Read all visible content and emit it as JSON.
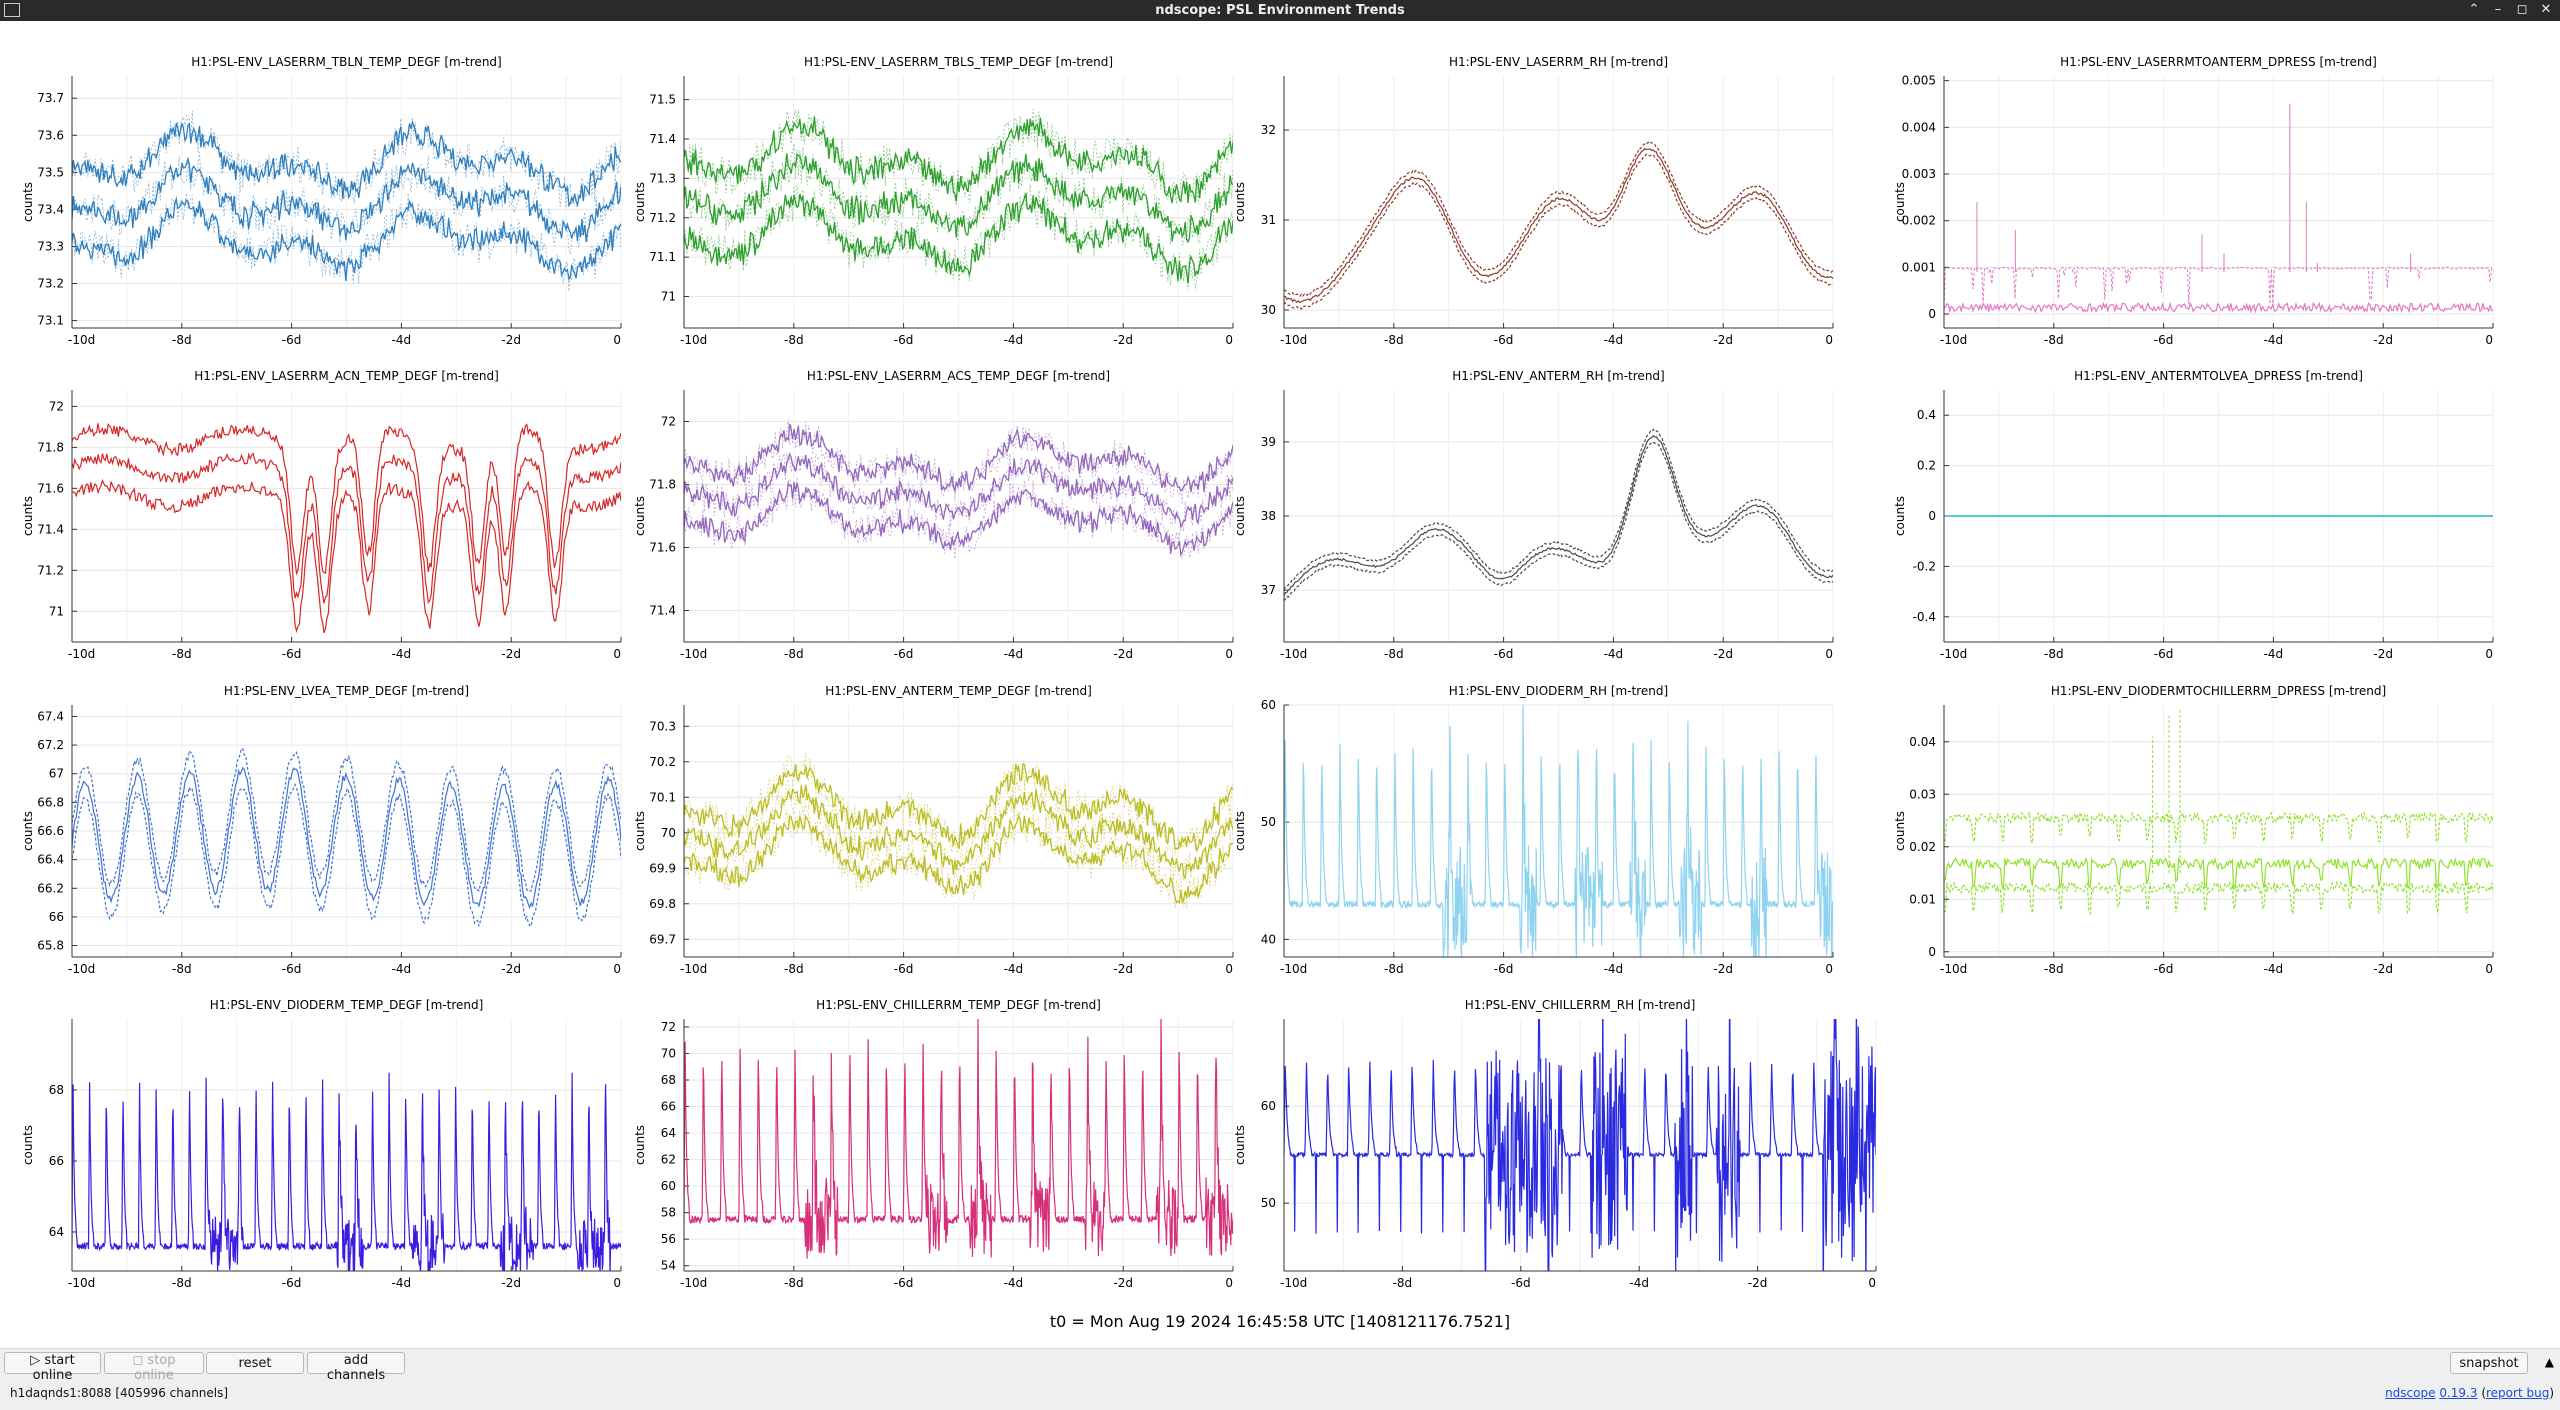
{
  "window": {
    "title": "ndscope: PSL Environment Trends"
  },
  "t0_label": "t0 = Mon Aug 19 2024 16:45:58 UTC [1408121176.7521]",
  "toolbar": {
    "start_online": "start online",
    "stop_online": "stop online",
    "reset": "reset",
    "add_channels": "add channels",
    "snapshot": "snapshot"
  },
  "status": {
    "server": "h1daqnds1:8088  [405996 channels]",
    "app_name": "ndscope",
    "version": "0.19.3",
    "report_bug": "report bug"
  },
  "colors": {
    "blue": "#2f7fbf",
    "green": "#2ca02c",
    "brown": "#8c3a2a",
    "pink": "#e377c2",
    "red": "#d62728",
    "purple": "#9467bd",
    "darkgray": "#4a4a4a",
    "teal": "#17becf",
    "cornflower": "#3f73d2",
    "olive": "#bcbd22",
    "skyblue": "#8fd3f0",
    "lime": "#8ee22a",
    "violet": "#3a1ee0",
    "magenta": "#d6307a",
    "royal": "#2a2ae0"
  },
  "chart_data": [
    {
      "type": "line",
      "title": "H1:PSL-ENV_LASERRM_TBLN_TEMP_DEGF [m-trend]",
      "ylabel": "counts",
      "color": "blue",
      "shape": "band",
      "ylim": [
        73.08,
        73.76
      ],
      "yticks": [
        "73.1",
        "73.2",
        "73.3",
        "73.4",
        "73.5",
        "73.6",
        "73.7"
      ],
      "xticks": [
        "-10d",
        "-8d",
        "-6d",
        "-4d",
        "-2d",
        "0"
      ],
      "xlim": [
        -10,
        0
      ],
      "center": 73.42,
      "spread": 0.16,
      "wave": 0.05
    },
    {
      "type": "line",
      "title": "H1:PSL-ENV_LASERRM_TBLS_TEMP_DEGF [m-trend]",
      "ylabel": "counts",
      "color": "green",
      "shape": "band",
      "ylim": [
        70.92,
        71.56
      ],
      "yticks": [
        "71",
        "71.1",
        "71.2",
        "71.3",
        "71.4",
        "71.5"
      ],
      "xticks": [
        "-10d",
        "-8d",
        "-6d",
        "-4d",
        "-2d",
        "0"
      ],
      "xlim": [
        -10,
        0
      ],
      "center": 71.25,
      "spread": 0.15,
      "wave": 0.05
    },
    {
      "type": "line",
      "title": "H1:PSL-ENV_LASERRM_RH [m-trend]",
      "ylabel": "counts",
      "color": "brown",
      "shape": "rh1",
      "ylim": [
        29.8,
        32.6
      ],
      "yticks": [
        "30",
        "31",
        "32"
      ],
      "xticks": [
        "-10d",
        "-8d",
        "-6d",
        "-4d",
        "-2d",
        "0"
      ],
      "xlim": [
        -10,
        0
      ]
    },
    {
      "type": "line",
      "title": "H1:PSL-ENV_LASERRMTOANTERM_DPRESS [m-trend]",
      "ylabel": "counts",
      "color": "pink",
      "shape": "dpress1",
      "ylim": [
        -0.0003,
        0.0051
      ],
      "yticks": [
        "0",
        "0.001",
        "0.002",
        "0.003",
        "0.004",
        "0.005"
      ],
      "xticks": [
        "-10d",
        "-8d",
        "-6d",
        "-4d",
        "-2d",
        "0"
      ],
      "xlim": [
        -10,
        0
      ]
    },
    {
      "type": "line",
      "title": "H1:PSL-ENV_LASERRM_ACN_TEMP_DEGF [m-trend]",
      "ylabel": "counts",
      "color": "red",
      "shape": "acn",
      "ylim": [
        70.85,
        72.08
      ],
      "yticks": [
        "71",
        "71.2",
        "71.4",
        "71.6",
        "71.8",
        "72"
      ],
      "xticks": [
        "-10d",
        "-8d",
        "-6d",
        "-4d",
        "-2d",
        "0"
      ],
      "xlim": [
        -10,
        0
      ]
    },
    {
      "type": "line",
      "title": "H1:PSL-ENV_LASERRM_ACS_TEMP_DEGF [m-trend]",
      "ylabel": "counts",
      "color": "purple",
      "shape": "band",
      "ylim": [
        71.3,
        72.1
      ],
      "yticks": [
        "71.4",
        "71.6",
        "71.8",
        "72"
      ],
      "xticks": [
        "-10d",
        "-8d",
        "-6d",
        "-4d",
        "-2d",
        "0"
      ],
      "xlim": [
        -10,
        0
      ],
      "center": 71.78,
      "spread": 0.14,
      "wave": 0.05
    },
    {
      "type": "line",
      "title": "H1:PSL-ENV_ANTERM_RH [m-trend]",
      "ylabel": "counts",
      "color": "darkgray",
      "shape": "rh2",
      "ylim": [
        36.3,
        39.7
      ],
      "yticks": [
        "37",
        "38",
        "39"
      ],
      "xticks": [
        "-10d",
        "-8d",
        "-6d",
        "-4d",
        "-2d",
        "0"
      ],
      "xlim": [
        -10,
        0
      ]
    },
    {
      "type": "line",
      "title": "H1:PSL-ENV_ANTERMTOLVEA_DPRESS [m-trend]",
      "ylabel": "counts",
      "color": "teal",
      "shape": "flat",
      "ylim": [
        -0.5,
        0.5
      ],
      "yticks": [
        "-0.4",
        "-0.2",
        "0",
        "0.2",
        "0.4"
      ],
      "xticks": [
        "-10d",
        "-8d",
        "-6d",
        "-4d",
        "-2d",
        "0"
      ],
      "xlim": [
        -10,
        0
      ]
    },
    {
      "type": "line",
      "title": "H1:PSL-ENV_LVEA_TEMP_DEGF [m-trend]",
      "ylabel": "counts",
      "color": "cornflower",
      "shape": "lvea",
      "ylim": [
        65.72,
        67.48
      ],
      "yticks": [
        "65.8",
        "66",
        "66.2",
        "66.4",
        "66.6",
        "66.8",
        "67",
        "67.2",
        "67.4"
      ],
      "xticks": [
        "-10d",
        "-8d",
        "-6d",
        "-4d",
        "-2d",
        "0"
      ],
      "xlim": [
        -10,
        0
      ]
    },
    {
      "type": "line",
      "title": "H1:PSL-ENV_ANTERM_TEMP_DEGF [m-trend]",
      "ylabel": "counts",
      "color": "olive",
      "shape": "band",
      "ylim": [
        69.65,
        70.36
      ],
      "yticks": [
        "69.7",
        "69.8",
        "69.9",
        "70",
        "70.1",
        "70.2",
        "70.3"
      ],
      "xticks": [
        "-10d",
        "-8d",
        "-6d",
        "-4d",
        "-2d",
        "0"
      ],
      "xlim": [
        -10,
        0
      ],
      "center": 70.0,
      "spread": 0.11,
      "wave": 0.06
    },
    {
      "type": "line",
      "title": "H1:PSL-ENV_DIODERM_RH [m-trend]",
      "ylabel": "counts",
      "color": "skyblue",
      "shape": "diode_rh",
      "ylim": [
        38.5,
        60
      ],
      "yticks": [
        "40",
        "50",
        "60"
      ],
      "xticks": [
        "-10d",
        "-8d",
        "-6d",
        "-4d",
        "-2d",
        "0"
      ],
      "xlim": [
        -10,
        0
      ]
    },
    {
      "type": "line",
      "title": "H1:PSL-ENV_DIODERMTOCHILLERRM_DPRESS [m-trend]",
      "ylabel": "counts",
      "color": "lime",
      "shape": "dpress2",
      "ylim": [
        -0.001,
        0.047
      ],
      "yticks": [
        "0",
        "0.01",
        "0.02",
        "0.03",
        "0.04"
      ],
      "xticks": [
        "-10d",
        "-8d",
        "-6d",
        "-4d",
        "-2d",
        "0"
      ],
      "xlim": [
        -10,
        0
      ]
    },
    {
      "type": "line",
      "title": "H1:PSL-ENV_DIODERM_TEMP_DEGF [m-trend]",
      "ylabel": "counts",
      "color": "violet",
      "shape": "diode_temp",
      "ylim": [
        62.9,
        70
      ],
      "yticks": [
        "64",
        "66",
        "68"
      ],
      "xticks": [
        "-10d",
        "-8d",
        "-6d",
        "-4d",
        "-2d",
        "0"
      ],
      "xlim": [
        -10,
        0
      ]
    },
    {
      "type": "line",
      "title": "H1:PSL-ENV_CHILLERRM_TEMP_DEGF [m-trend]",
      "ylabel": "counts",
      "color": "magenta",
      "shape": "chiller_temp",
      "ylim": [
        53.6,
        72.6
      ],
      "yticks": [
        "54",
        "56",
        "58",
        "60",
        "62",
        "64",
        "66",
        "68",
        "70",
        "72"
      ],
      "xticks": [
        "-10d",
        "-8d",
        "-6d",
        "-4d",
        "-2d",
        "0"
      ],
      "xlim": [
        -10,
        0
      ]
    },
    {
      "type": "line",
      "title": "H1:PSL-ENV_CHILLERRM_RH [m-trend]",
      "ylabel": "counts",
      "color": "royal",
      "shape": "chiller_rh",
      "ylim": [
        43,
        69
      ],
      "yticks": [
        "50",
        "60"
      ],
      "xticks": [
        "-10d",
        "-8d",
        "-6d",
        "-4d",
        "-2d",
        "0"
      ],
      "xlim": [
        -10,
        0
      ]
    }
  ]
}
